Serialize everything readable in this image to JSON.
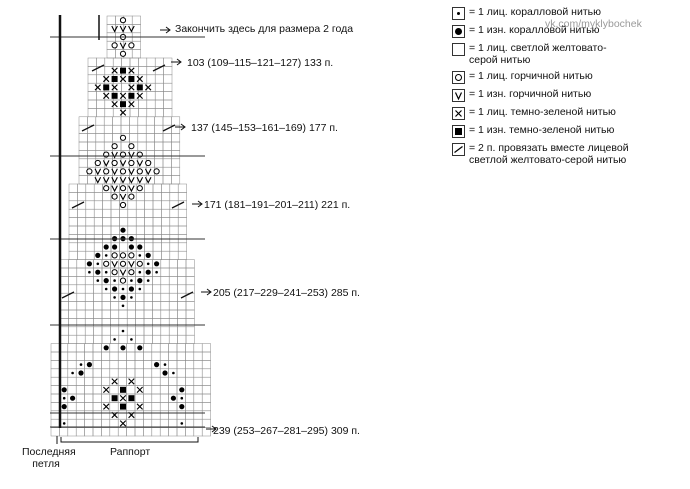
{
  "top_note": "Закончить здесь для размера 2 года",
  "stitch_counts": [
    "103 (109–115–121–127) 133 п.",
    "137 (145–153–161–169) 177 п.",
    "171 (181–191–201–211) 221 п.",
    "205 (217–229–241–253) 285 п.",
    "239 (253–267–281–295) 309 п."
  ],
  "bottom_labels": {
    "last_loop": "Последняя петля",
    "repeat": "Раппорт"
  },
  "watermark": "vk.com/myklybochek",
  "legend": [
    {
      "icon": "dot-icon",
      "text": "= 1 лиц. коралловой нитью"
    },
    {
      "icon": "big-dot-icon",
      "text": "= 1 изн. коралловой нитью"
    },
    {
      "icon": "empty-square-icon",
      "text": "= 1 лиц. светлой желтовато-серой нитью"
    },
    {
      "icon": "circle-icon",
      "text": "= 1 лиц. горчичной нитью"
    },
    {
      "icon": "v-icon",
      "text": "= 1 изн. горчичной нитью"
    },
    {
      "icon": "x-icon",
      "text": "= 1 лиц. темно-зеленой нитью"
    },
    {
      "icon": "filled-square-icon",
      "text": "= 1 изн. темно-зеленой нитью"
    },
    {
      "icon": "slash-icon",
      "text": "= 2 п. провязать вместе лицевой светлой желтовато-серой нитью"
    }
  ]
}
